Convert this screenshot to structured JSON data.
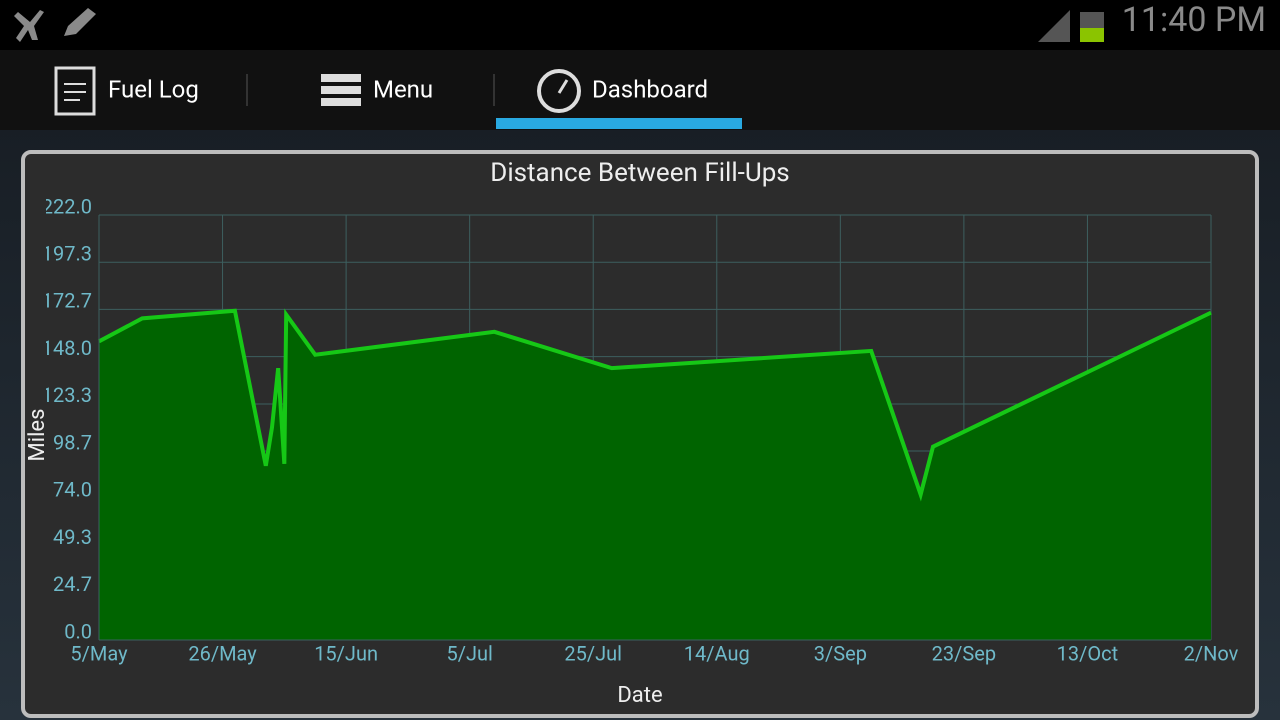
{
  "status_bar": {
    "time": "11:40 PM"
  },
  "tabs": [
    "Fuel Log",
    "Menu",
    "Dashboard"
  ],
  "chart_data": {
    "type": "area",
    "title": "Distance Between Fill-Ups",
    "x_label": "Date",
    "y_label": "Miles",
    "color": "#16c816",
    "fill": "#006400",
    "x": [
      0,
      7,
      22,
      27,
      28,
      29,
      30,
      30.3,
      35,
      64,
      83,
      125,
      133,
      135,
      180
    ],
    "series": [
      {
        "name": "Miles",
        "color": "#16c816",
        "values": [
          156,
          168,
          172,
          91,
          111,
          142,
          92,
          170,
          149,
          161,
          142,
          151,
          76,
          101,
          171
        ]
      }
    ],
    "xlim": [
      0,
      180
    ],
    "xticks": [
      {
        "value": 0,
        "label": "5/May"
      },
      {
        "value": 20,
        "label": "26/May"
      },
      {
        "value": 40,
        "label": "15/Jun"
      },
      {
        "value": 60,
        "label": "5/Jul"
      },
      {
        "value": 80,
        "label": "25/Jul"
      },
      {
        "value": 100,
        "label": "14/Aug"
      },
      {
        "value": 120,
        "label": "3/Sep"
      },
      {
        "value": 140,
        "label": "23/Sep"
      },
      {
        "value": 160,
        "label": "13/Oct"
      },
      {
        "value": 180,
        "label": "2/Nov"
      }
    ],
    "ylim": [
      0,
      222
    ],
    "yticks": [
      {
        "value": 0,
        "label": "0.0"
      },
      {
        "value": 24.7,
        "label": "24.7"
      },
      {
        "value": 49.3,
        "label": "49.3"
      },
      {
        "value": 74,
        "label": "74.0"
      },
      {
        "value": 98.7,
        "label": "98.7"
      },
      {
        "value": 123.3,
        "label": "123.3"
      },
      {
        "value": 148,
        "label": "148.0"
      },
      {
        "value": 172.7,
        "label": "172.7"
      },
      {
        "value": 197.3,
        "label": "197.3"
      },
      {
        "value": 222,
        "label": "222.0"
      }
    ],
    "grid": true
  }
}
